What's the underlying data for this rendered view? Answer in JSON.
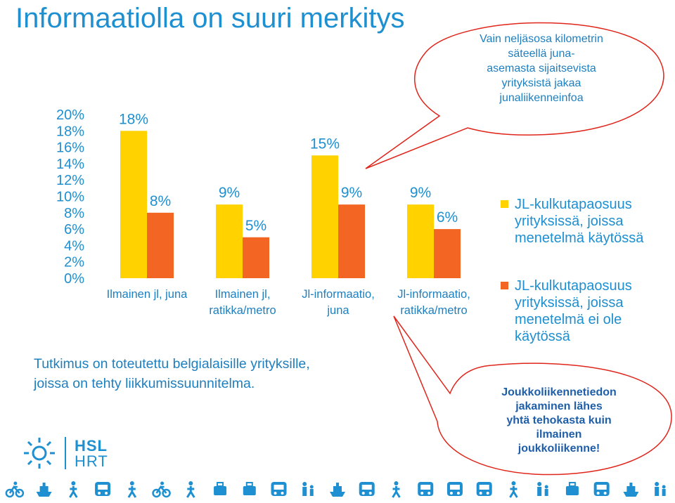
{
  "title": "Informaatiolla on suuri merkitys",
  "chart_data": {
    "type": "bar",
    "categories": [
      [
        "Ilmainen jl, juna"
      ],
      [
        "Ilmainen jl,",
        "ratikka/metro"
      ],
      [
        "Jl-informaatio,",
        "juna"
      ],
      [
        "Jl-informaatio,",
        "ratikka/metro"
      ]
    ],
    "series": [
      {
        "name": "JL-kulkutapaosuus yrityksissä, joissa menetelmä käytössä",
        "color": "#ffd200",
        "values": [
          18,
          9,
          15,
          9
        ]
      },
      {
        "name": "JL-kulkutapaosuus yrityksissä, joissa menetelmä ei ole käytössä",
        "color": "#f26522",
        "values": [
          8,
          5,
          9,
          6
        ]
      }
    ],
    "value_labels": [
      [
        "18%",
        "8%"
      ],
      [
        "9%",
        "5%"
      ],
      [
        "15%",
        "9%"
      ],
      [
        "9%",
        "6%"
      ]
    ],
    "yticks": [
      "0%",
      "2%",
      "4%",
      "6%",
      "8%",
      "10%",
      "12%",
      "14%",
      "16%",
      "18%",
      "20%"
    ],
    "ylim": [
      0,
      20
    ],
    "grid": false,
    "legend_position": "right"
  },
  "legend": {
    "item1": [
      "JL-kulkutapaosuus",
      "yrityksissä, joissa",
      "menetelmä käytössä"
    ],
    "item2": [
      "JL-kulkutapaosuus",
      "yrityksissä, joissa",
      "menetelmä ei ole",
      "käytössä"
    ]
  },
  "note": {
    "line1": "Tutkimus on toteutettu belgialaisille yrityksille,",
    "line2": "joissa on tehty liikkumissuunnitelma."
  },
  "callout1": {
    "lines": [
      "Vain neljäsosa kilometrin",
      "säteellä juna-",
      "asemasta sijaitsevista",
      "yrityksistä jakaa",
      "junaliikenneinfoa"
    ]
  },
  "callout2": {
    "lines": [
      "Joukkoliikennetiedon",
      "jakaminen lähes",
      "yhtä tehokasta kuin",
      "ilmainen",
      "joukkoliikenne!"
    ]
  },
  "logo": {
    "line1": "HSL",
    "line2": "HRT"
  },
  "colors": {
    "accent": "#1e8fd0",
    "callout_border": "#e0251b"
  },
  "icons": [
    "cyclist-icon",
    "ferry-icon",
    "walker-icon",
    "tram-icon",
    "pedestrian-icon",
    "bicycle-icon",
    "stroller-icon",
    "luggage-icon",
    "bench-icon",
    "bus-icon",
    "family-icon",
    "ferry-icon",
    "taxi-icon",
    "wheelchair-icon",
    "bus-icon",
    "metro-icon",
    "train-icon",
    "walker-icon",
    "family-icon",
    "bench-icon",
    "train-icon",
    "ferry-icon",
    "family-icon"
  ]
}
